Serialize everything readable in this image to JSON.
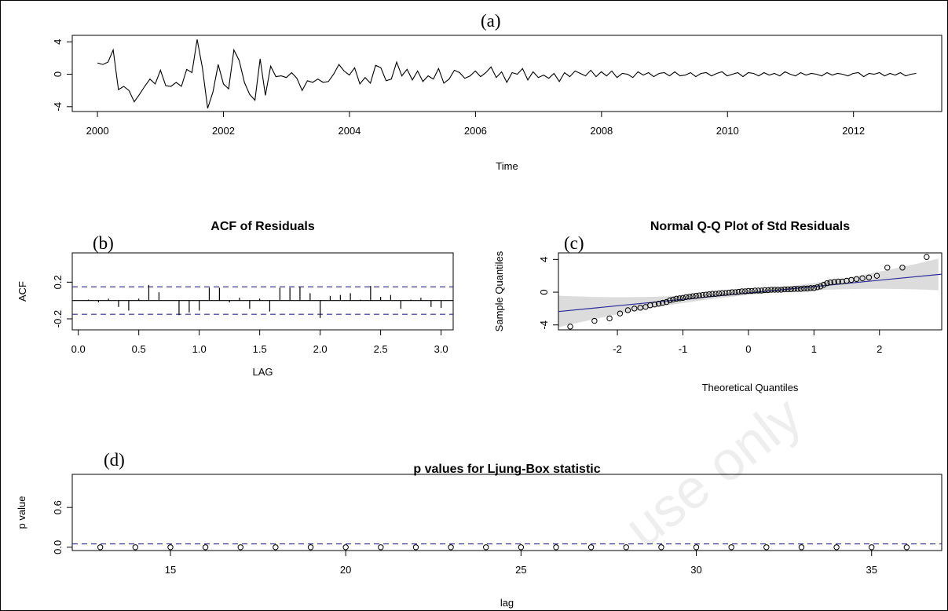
{
  "watermark": "use only",
  "chart_data": [
    {
      "panel": "(a)",
      "type": "line",
      "title": "",
      "xlabel": "Time",
      "ylabel": "",
      "xlim": [
        1999.6,
        2013.4
      ],
      "ylim": [
        -4.6,
        4.8
      ],
      "xticks": [
        2000,
        2002,
        2004,
        2006,
        2008,
        2010,
        2012
      ],
      "xtick_labels": [
        "2000",
        "2002",
        "2004",
        "2006",
        "2008",
        "2010",
        "2012"
      ],
      "yticks": [
        -4,
        0,
        4
      ],
      "ytick_labels": [
        "-4",
        "0",
        "4"
      ],
      "x_start": 2000,
      "x_step": 0.0833,
      "values": [
        1.4,
        1.2,
        1.5,
        3.0,
        -1.9,
        -1.5,
        -2.0,
        -3.4,
        -2.5,
        -1.5,
        -0.6,
        -1.2,
        0.5,
        -1.4,
        -1.5,
        -1.0,
        -1.5,
        0.6,
        0.2,
        4.3,
        0.8,
        -4.2,
        -2.2,
        1.2,
        -1.2,
        -1.8,
        3.0,
        1.7,
        -1.0,
        -2.5,
        -3.2,
        1.9,
        -2.6,
        1.0,
        -0.3,
        -0.2,
        -0.4,
        0.2,
        -0.5,
        -2.0,
        -0.8,
        -1.0,
        -0.6,
        -1.0,
        -0.9,
        0.0,
        1.2,
        0.4,
        -0.1,
        0.8,
        -1.2,
        -0.4,
        -1.1,
        1.1,
        0.8,
        -0.8,
        -0.6,
        1.5,
        -0.2,
        0.6,
        -0.7,
        0.4,
        -0.9,
        -0.2,
        -0.6,
        0.7,
        -1.1,
        -0.6,
        0.5,
        0.2,
        -0.5,
        -0.2,
        0.4,
        -0.3,
        0.2,
        0.9,
        -0.4,
        0.3,
        -1.0,
        0.2,
        0.0,
        0.7,
        -0.7,
        0.3,
        -0.4,
        -0.1,
        -0.5,
        0.1,
        -0.9,
        0.2,
        -0.3,
        0.4,
        0.1,
        -0.2,
        0.5,
        -0.3,
        0.3,
        -0.2,
        0.4,
        -0.4,
        0.1,
        0.0,
        -0.4,
        0.3,
        -0.1,
        0.2,
        -0.3,
        0.1,
        0.2,
        -0.2,
        0.3,
        -0.2,
        -0.1,
        0.2,
        -0.3,
        0.1,
        0.2,
        -0.2,
        0.1,
        0.3,
        -0.2,
        0.0,
        0.2,
        -0.3,
        0.2,
        0.1,
        -0.2,
        0.2,
        -0.1,
        0.1,
        -0.2,
        0.3,
        0.0,
        -0.2,
        0.2,
        -0.1,
        0.1,
        0.0,
        -0.2,
        0.2,
        -0.1,
        0.1,
        0.0,
        -0.2,
        0.1,
        0.2,
        -0.3,
        0.1,
        0.0,
        0.2,
        -0.2,
        0.1,
        -0.1,
        0.2,
        -0.2,
        0.0,
        0.1
      ]
    },
    {
      "panel": "(b)",
      "type": "bar",
      "title": "ACF of Residuals",
      "xlabel": "LAG",
      "ylabel": "ACF",
      "xlim": [
        -0.05,
        3.1
      ],
      "ylim": [
        -0.32,
        0.52
      ],
      "xticks": [
        0.0,
        0.5,
        1.0,
        1.5,
        2.0,
        2.5,
        3.0
      ],
      "xtick_labels": [
        "0.0",
        "0.5",
        "1.0",
        "1.5",
        "2.0",
        "2.5",
        "3.0"
      ],
      "yticks": [
        -0.2,
        0.2
      ],
      "ytick_labels": [
        "-0.2",
        "0.2"
      ],
      "confidence_band": 0.15,
      "lags": [
        0.083,
        0.167,
        0.25,
        0.333,
        0.417,
        0.5,
        0.583,
        0.667,
        0.75,
        0.833,
        0.917,
        1.0,
        1.083,
        1.167,
        1.25,
        1.333,
        1.417,
        1.5,
        1.583,
        1.667,
        1.75,
        1.833,
        1.917,
        2.0,
        2.083,
        2.167,
        2.25,
        2.333,
        2.417,
        2.5,
        2.583,
        2.667,
        2.75,
        2.833,
        2.917,
        3.0
      ],
      "values": [
        0.01,
        -0.02,
        0.02,
        -0.07,
        -0.11,
        0.02,
        0.17,
        0.09,
        0.0,
        -0.16,
        -0.13,
        -0.11,
        0.14,
        0.14,
        -0.02,
        0.03,
        -0.09,
        0.02,
        -0.12,
        0.14,
        0.14,
        0.15,
        0.08,
        -0.19,
        0.05,
        0.06,
        0.08,
        0.01,
        0.16,
        0.04,
        0.06,
        -0.09,
        0.01,
        0.03,
        -0.07,
        -0.08
      ]
    },
    {
      "panel": "(c)",
      "type": "scatter",
      "title": "Normal Q-Q Plot of Std Residuals",
      "xlabel": "Theoretical Quantiles",
      "ylabel": "Sample Quantiles",
      "xlim": [
        -2.9,
        2.95
      ],
      "ylim": [
        -4.6,
        4.8
      ],
      "xticks": [
        -2,
        -1,
        0,
        1,
        2
      ],
      "xtick_labels": [
        "-2",
        "-1",
        "0",
        "1",
        "2"
      ],
      "yticks": [
        -4,
        0,
        4
      ],
      "ytick_labels": [
        "-4",
        "0",
        "4"
      ],
      "reference_line": {
        "intercept": -0.1,
        "slope": 0.78
      },
      "x": [
        -2.72,
        -2.35,
        -2.12,
        -1.96,
        -1.84,
        -1.74,
        -1.65,
        -1.57,
        -1.5,
        -1.43,
        -1.37,
        -1.31,
        -1.25,
        -1.2,
        -1.15,
        -1.1,
        -1.05,
        -1.0,
        -0.95,
        -0.9,
        -0.85,
        -0.8,
        -0.75,
        -0.7,
        -0.65,
        -0.6,
        -0.55,
        -0.5,
        -0.45,
        -0.4,
        -0.35,
        -0.3,
        -0.25,
        -0.2,
        -0.15,
        -0.1,
        -0.05,
        0.0,
        0.05,
        0.1,
        0.15,
        0.2,
        0.25,
        0.3,
        0.35,
        0.4,
        0.45,
        0.5,
        0.55,
        0.6,
        0.65,
        0.7,
        0.75,
        0.8,
        0.85,
        0.9,
        0.95,
        1.0,
        1.05,
        1.1,
        1.15,
        1.2,
        1.25,
        1.31,
        1.37,
        1.43,
        1.5,
        1.57,
        1.65,
        1.74,
        1.84,
        1.96,
        2.12,
        2.35,
        2.72
      ],
      "y": [
        -4.2,
        -3.5,
        -3.2,
        -2.6,
        -2.2,
        -2.0,
        -1.9,
        -1.8,
        -1.6,
        -1.5,
        -1.4,
        -1.3,
        -1.2,
        -1.0,
        -0.9,
        -0.8,
        -0.75,
        -0.7,
        -0.6,
        -0.55,
        -0.5,
        -0.45,
        -0.4,
        -0.35,
        -0.3,
        -0.25,
        -0.2,
        -0.2,
        -0.15,
        -0.1,
        -0.1,
        -0.05,
        0.0,
        0.0,
        0.05,
        0.1,
        0.1,
        0.15,
        0.15,
        0.2,
        0.2,
        0.2,
        0.25,
        0.25,
        0.3,
        0.3,
        0.3,
        0.3,
        0.35,
        0.35,
        0.35,
        0.4,
        0.4,
        0.4,
        0.45,
        0.45,
        0.5,
        0.5,
        0.6,
        0.7,
        0.9,
        1.1,
        1.2,
        1.25,
        1.3,
        1.3,
        1.4,
        1.5,
        1.6,
        1.7,
        1.8,
        2.0,
        3.0,
        3.0,
        4.3
      ]
    },
    {
      "panel": "(d)",
      "type": "scatter",
      "title": "p values for Ljung-Box statistic",
      "xlabel": "lag",
      "ylabel": "p value",
      "xlim": [
        12.2,
        37.0
      ],
      "ylim": [
        -0.05,
        1.1
      ],
      "xticks": [
        15,
        20,
        25,
        30,
        35
      ],
      "xtick_labels": [
        "15",
        "20",
        "25",
        "30",
        "35"
      ],
      "yticks": [
        0.0,
        0.6
      ],
      "ytick_labels": [
        "0.0",
        "0.6"
      ],
      "significance_line": 0.05,
      "x": [
        13,
        14,
        15,
        16,
        17,
        18,
        19,
        20,
        21,
        22,
        23,
        24,
        25,
        26,
        27,
        28,
        29,
        30,
        31,
        32,
        33,
        34,
        35,
        36
      ],
      "y": [
        0,
        0,
        0,
        0,
        0,
        0,
        0,
        0,
        0,
        0,
        0,
        0,
        0,
        0,
        0,
        0,
        0,
        0,
        0,
        0,
        0,
        0,
        0,
        0
      ]
    }
  ]
}
